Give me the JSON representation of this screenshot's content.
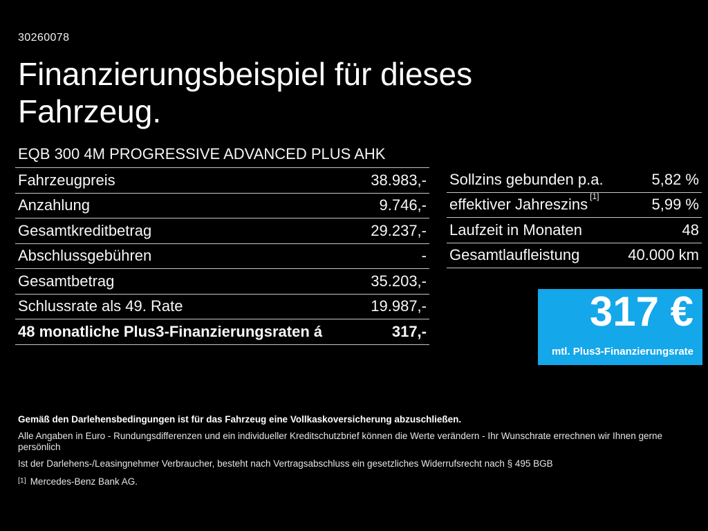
{
  "page": {
    "background": "#000000",
    "text_color": "#ffffff",
    "accent_blue": "#14a7e9",
    "divider_color": "#c9c9c9"
  },
  "header": {
    "vehicle_id": "30260078",
    "title_line1": "Finanzierungsbeispiel für dieses",
    "title_line2": "Fahrzeug.",
    "vehicle_name": "EQB 300 4M PROGRESSIVE ADVANCED PLUS AHK"
  },
  "finance_table": {
    "rows": [
      {
        "label": "Fahrzeugpreis",
        "value": "38.983,-"
      },
      {
        "label": "Anzahlung",
        "value": "9.746,-"
      },
      {
        "label": "Gesamtkreditbetrag",
        "value": "29.237,-"
      },
      {
        "label": "Abschlussgebühren",
        "value": "-"
      },
      {
        "label": "Gesamtbetrag",
        "value": "35.203,-"
      },
      {
        "label": "Schlussrate als 49. Rate",
        "value": "19.987,-"
      },
      {
        "label": "48 monatliche Plus3-Finanzierungsraten á",
        "value": "317,-",
        "bold": true
      }
    ]
  },
  "conditions_table": {
    "rows": [
      {
        "label": "Sollzins gebunden p.a.",
        "value": "5,82 %"
      },
      {
        "label": "effektiver Jahreszins",
        "sup": "[1]",
        "value": "5,99 %"
      },
      {
        "label": "Laufzeit in Monaten",
        "value": "48"
      },
      {
        "label": "Gesamtlaufleistung",
        "value": "40.000 km"
      }
    ]
  },
  "rate_box": {
    "amount": "317 €",
    "caption": "mtl. Plus3-Finanzierungsrate"
  },
  "footnotes": {
    "insurance": "Gemäß den Darlehensbedingungen ist für das Fahrzeug eine Vollkaskoversicherung abzuschließen.",
    "disclaimer": "Alle Angaben in Euro - Rundungsdifferenzen und ein individueller Kreditschutzbrief können die Werte verändern - Ihr Wunschrate errechnen wir Ihnen gerne persönlich",
    "withdrawal": "Ist der Darlehens-/Leasingnehmer Verbraucher, besteht nach Vertragsabschluss ein gesetzliches Widerrufsrecht nach § 495 BGB",
    "bank_marker": "[1]",
    "bank_text": "Mercedes-Benz Bank AG."
  }
}
